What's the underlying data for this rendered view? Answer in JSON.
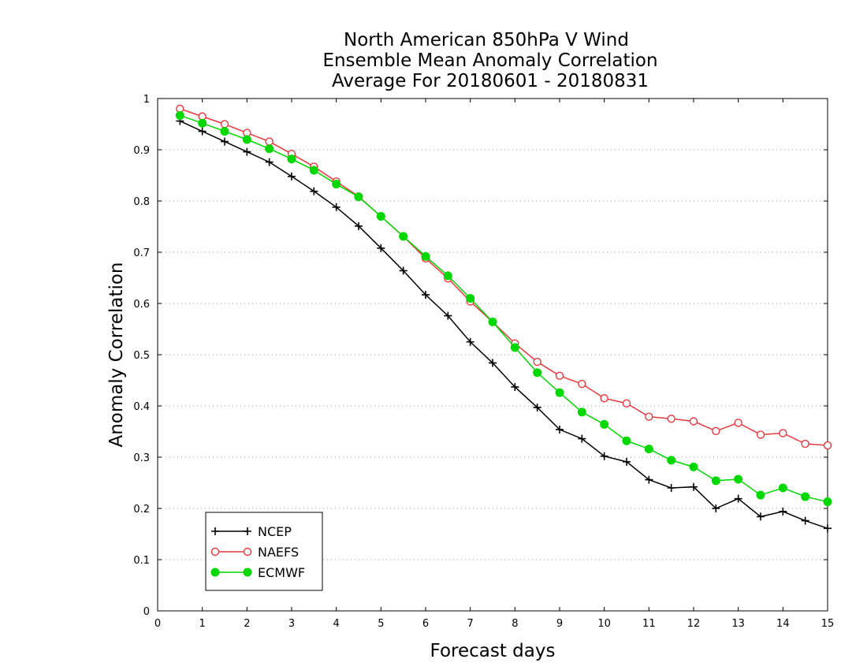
{
  "chart_data": {
    "type": "line",
    "title": [
      "North American 850hPa V Wind",
      "Ensemble Mean Anomaly Correlation",
      "Average For 20180601 - 20180831"
    ],
    "xlabel": "Forecast days",
    "ylabel": "Anomaly Correlation",
    "xlim": [
      0,
      15
    ],
    "ylim": [
      0,
      1
    ],
    "xticks": [
      "0",
      "1",
      "2",
      "3",
      "4",
      "5",
      "6",
      "7",
      "8",
      "9",
      "10",
      "11",
      "12",
      "13",
      "14",
      "15"
    ],
    "yticks": [
      "0",
      "0.1",
      "0.2",
      "0.3",
      "0.4",
      "0.5",
      "0.6",
      "0.7",
      "0.8",
      "0.9",
      "1"
    ],
    "grid": "horizontal dotted",
    "legend_position": "bottom-left",
    "x": [
      0.5,
      1,
      1.5,
      2,
      2.5,
      3,
      3.5,
      4,
      4.5,
      5,
      5.5,
      6,
      6.5,
      7,
      7.5,
      8,
      8.5,
      9,
      9.5,
      10,
      10.5,
      11,
      11.5,
      12,
      12.5,
      13,
      13.5,
      14,
      14.5,
      15
    ],
    "series": [
      {
        "name": "NCEP",
        "color": "#000000",
        "marker": "plus",
        "values": [
          0.956,
          0.936,
          0.916,
          0.896,
          0.876,
          0.848,
          0.819,
          0.788,
          0.751,
          0.708,
          0.664,
          0.617,
          0.576,
          0.525,
          0.484,
          0.437,
          0.397,
          0.354,
          0.336,
          0.302,
          0.291,
          0.256,
          0.24,
          0.242,
          0.2,
          0.219,
          0.184,
          0.194,
          0.176,
          0.161
        ]
      },
      {
        "name": "NAEFS",
        "color": "#e8383d",
        "marker": "open-circle",
        "values": [
          0.98,
          0.965,
          0.95,
          0.933,
          0.916,
          0.892,
          0.867,
          0.838,
          0.809,
          0.77,
          0.731,
          0.688,
          0.649,
          0.604,
          0.564,
          0.522,
          0.486,
          0.459,
          0.443,
          0.415,
          0.405,
          0.379,
          0.375,
          0.37,
          0.351,
          0.367,
          0.344,
          0.347,
          0.326,
          0.323
        ]
      },
      {
        "name": "ECMWF",
        "color": "#00d800",
        "marker": "filled-circle",
        "values": [
          0.967,
          0.952,
          0.936,
          0.92,
          0.902,
          0.882,
          0.86,
          0.833,
          0.808,
          0.77,
          0.731,
          0.692,
          0.654,
          0.61,
          0.564,
          0.514,
          0.465,
          0.426,
          0.388,
          0.364,
          0.332,
          0.316,
          0.294,
          0.281,
          0.254,
          0.257,
          0.226,
          0.24,
          0.223,
          0.213
        ]
      }
    ]
  }
}
